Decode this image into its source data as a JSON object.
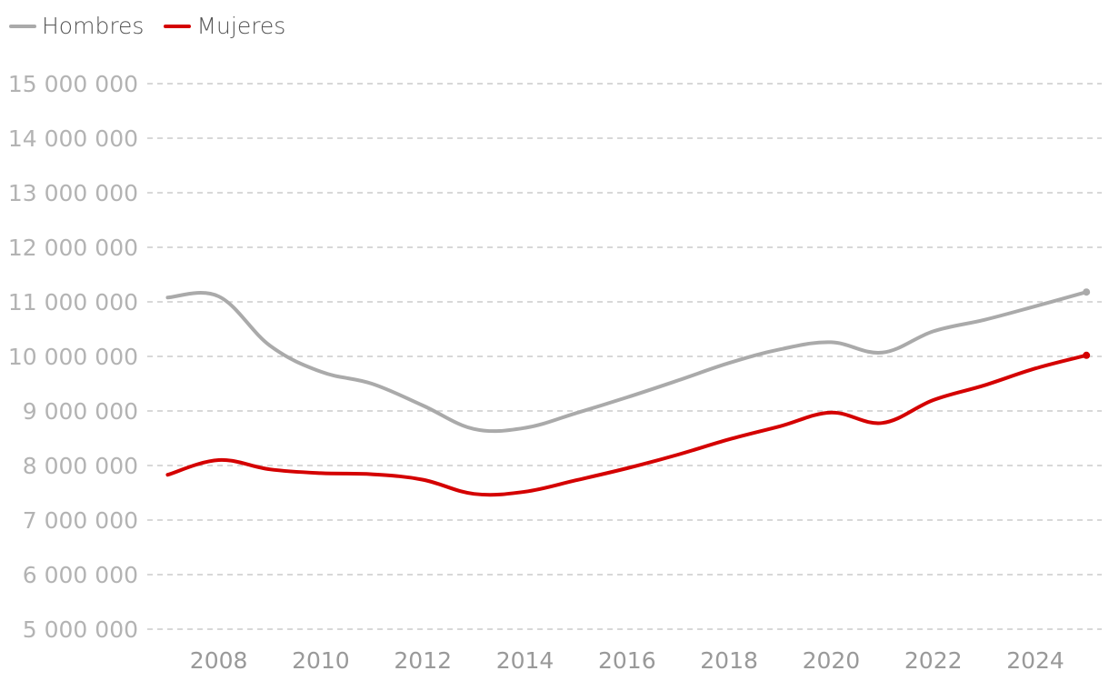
{
  "chart_data": {
    "type": "line",
    "title": "",
    "xlabel": "",
    "ylabel": "",
    "x": [
      2007,
      2008,
      2009,
      2010,
      2011,
      2012,
      2013,
      2014,
      2015,
      2016,
      2017,
      2018,
      2019,
      2020,
      2021,
      2022,
      2023,
      2024,
      2025
    ],
    "xticks": [
      2008,
      2010,
      2012,
      2014,
      2016,
      2018,
      2020,
      2022,
      2024
    ],
    "xtick_labels": [
      "2008",
      "2010",
      "2012",
      "2014",
      "2016",
      "2018",
      "2020",
      "2022",
      "2024"
    ],
    "xlim": [
      2006.6,
      2025.3
    ],
    "ylim": [
      5000000,
      15000000
    ],
    "yticks": [
      15000000,
      14000000,
      13000000,
      12000000,
      11000000,
      10000000,
      9000000,
      8000000,
      7000000,
      6000000,
      5000000
    ],
    "ytick_labels": [
      "15 000 000",
      "14 000 000",
      "13 000 000",
      "12 000 000",
      "11 000 000",
      "10 000 000",
      "9 000 000",
      "8 000 000",
      "7 000 000",
      "6 000 000",
      "5 000 000"
    ],
    "grid": true,
    "legend_position": "top-left",
    "series": [
      {
        "name": "Hombres",
        "color": "#aaaaaa",
        "values": [
          11080000,
          11100000,
          10200000,
          9720000,
          9500000,
          9100000,
          8670000,
          8690000,
          8960000,
          9250000,
          9560000,
          9880000,
          10130000,
          10260000,
          10070000,
          10460000,
          10670000,
          10920000,
          11180000
        ]
      },
      {
        "name": "Mujeres",
        "color": "#d40000",
        "values": [
          7830000,
          8100000,
          7930000,
          7860000,
          7840000,
          7740000,
          7480000,
          7520000,
          7730000,
          7950000,
          8200000,
          8480000,
          8720000,
          8970000,
          8780000,
          9200000,
          9470000,
          9780000,
          10020000
        ]
      }
    ]
  }
}
